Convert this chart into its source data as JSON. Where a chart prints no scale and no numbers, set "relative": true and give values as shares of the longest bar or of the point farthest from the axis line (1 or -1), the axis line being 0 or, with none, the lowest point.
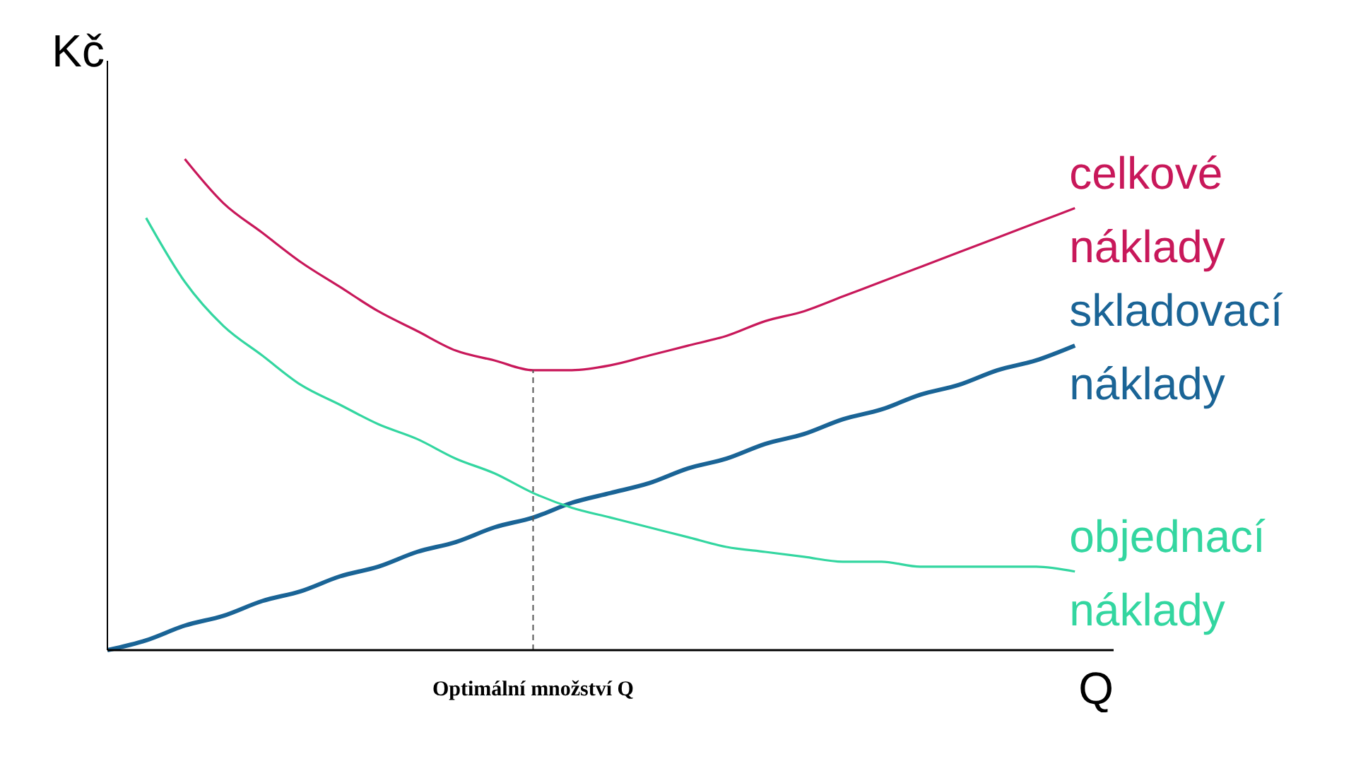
{
  "chart_data": {
    "type": "line",
    "relative": true,
    "ylabel": "Kč",
    "xlabel": "Q",
    "categories": [
      null,
      null,
      null,
      null,
      null,
      null,
      null,
      null,
      null,
      null,
      null,
      null,
      null,
      null,
      null,
      null,
      null,
      null,
      null,
      null,
      null,
      null,
      null,
      null,
      null,
      null
    ],
    "series": [
      {
        "name": "celkové náklady",
        "color": "#c8185a",
        "values": [
          null,
          null,
          1.0,
          0.91,
          0.85,
          0.79,
          0.74,
          0.69,
          0.65,
          0.61,
          0.59,
          0.57,
          0.57,
          0.58,
          0.6,
          0.62,
          0.64,
          0.67,
          0.69,
          0.72,
          0.75,
          0.78,
          0.81,
          0.84,
          0.87,
          0.9
        ]
      },
      {
        "name": "skladovací náklady",
        "color": "#1a6496",
        "values": [
          0,
          0.02,
          0.05,
          0.07,
          0.1,
          0.12,
          0.15,
          0.17,
          0.2,
          0.22,
          0.25,
          0.27,
          0.3,
          0.32,
          0.34,
          0.37,
          0.39,
          0.42,
          0.44,
          0.47,
          0.49,
          0.52,
          0.54,
          0.57,
          0.59,
          0.62
        ]
      },
      {
        "name": "objednací náklady",
        "color": "#33d6a0",
        "values": [
          null,
          0.88,
          0.75,
          0.66,
          0.6,
          0.54,
          0.5,
          0.46,
          0.43,
          0.39,
          0.36,
          0.32,
          0.29,
          0.27,
          0.25,
          0.23,
          0.21,
          0.2,
          0.19,
          0.18,
          0.18,
          0.17,
          0.17,
          0.17,
          0.17,
          0.16
        ]
      }
    ],
    "annotations": [
      "Optimální množství Q"
    ]
  }
}
